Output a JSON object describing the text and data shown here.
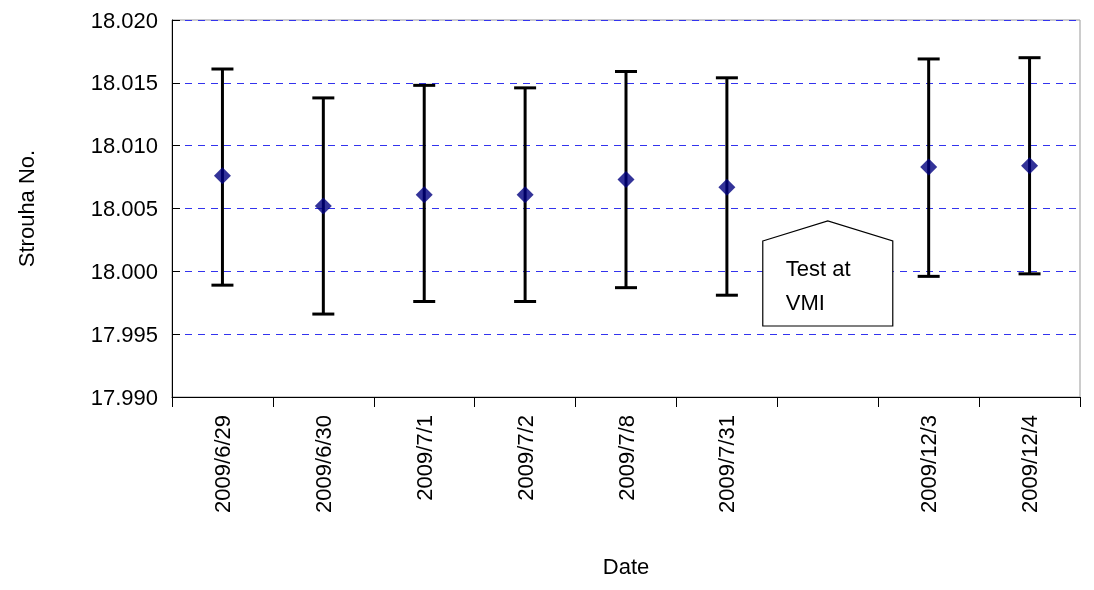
{
  "chart_data": {
    "type": "scatter",
    "xlabel": "Date",
    "ylabel": "Strouha No.",
    "categories": [
      "2009/6/29",
      "2009/6/30",
      "2009/7/1",
      "2009/7/2",
      "2009/7/8",
      "2009/7/31",
      null,
      "2009/12/3",
      "2009/12/4"
    ],
    "series": [
      {
        "color": "#000080",
        "values": [
          18.0076,
          18.0052,
          18.0061,
          18.0061,
          18.0073,
          18.0067,
          null,
          18.0083,
          18.0084
        ],
        "errors": [
          [
            17.9989,
            18.0161
          ],
          [
            17.9966,
            18.0138
          ],
          [
            17.9976,
            18.0148
          ],
          [
            17.9976,
            18.0146
          ],
          [
            17.9987,
            18.0159
          ],
          [
            17.9981,
            18.0154
          ],
          null,
          [
            17.9996,
            18.0169
          ],
          [
            17.9998,
            18.017
          ]
        ]
      }
    ],
    "ylim": [
      17.99,
      18.02
    ],
    "yticks": [
      {
        "value": 17.99,
        "label": "17.990"
      },
      {
        "value": 17.995,
        "label": "17.995"
      },
      {
        "value": 18.0,
        "label": "18.000"
      },
      {
        "value": 18.005,
        "label": "18.005"
      },
      {
        "value": 18.01,
        "label": "18.010"
      },
      {
        "value": 18.015,
        "label": "18.015"
      },
      {
        "value": 18.02,
        "label": "18.020"
      }
    ],
    "grid": "y",
    "marker": "diamond",
    "annotations": [
      "Test at\nVMI"
    ]
  }
}
